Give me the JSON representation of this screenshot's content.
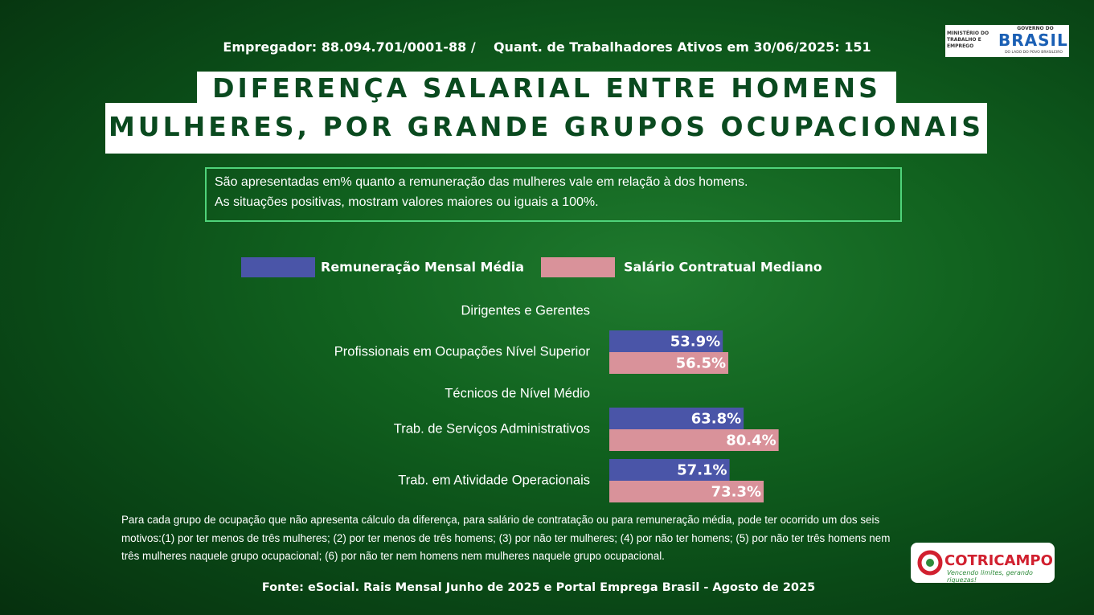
{
  "header": {
    "employer": "Empregador: 88.094.701/0001-88 /",
    "workers": "Quant. de Trabalhadores Ativos em 30/06/2025: 151"
  },
  "title": [
    "DIFERENÇA SALARIAL ENTRE HOMENS E",
    "MULHERES, POR GRANDE GRUPOS OCUPACIONAIS"
  ],
  "description": [
    "São apresentadas em% quanto a remuneração das mulheres vale em relação à dos homens.",
    "As situações positivas, mostram valores maiores ou iguais a 100%."
  ],
  "chart_data": {
    "type": "bar",
    "orientation": "horizontal",
    "categories": [
      "Dirigentes e Gerentes",
      "Profissionais em Ocupações Nível Superior",
      "Técnicos de Nível Médio",
      "Trab. de Serviços Administrativos",
      "Trab. em Atividade Operacionais"
    ],
    "series": [
      {
        "name": "Remuneração Mensal Média",
        "color": "#4a55a8",
        "values": [
          null,
          53.9,
          null,
          63.8,
          57.1
        ],
        "value_labels": [
          null,
          "53.9%",
          null,
          "63.8%",
          "57.1%"
        ]
      },
      {
        "name": "Salário Contratual Mediano",
        "color": "#d9929a",
        "values": [
          null,
          56.5,
          null,
          80.4,
          73.3
        ],
        "value_labels": [
          null,
          "56.5%",
          null,
          "80.4%",
          "73.3%"
        ]
      }
    ],
    "xlim": [
      0,
      100
    ],
    "legend": "top"
  },
  "footnote": "Para cada grupo de ocupação que não apresenta cálculo da diferença, para salário de contratação ou para remuneração média, pode ter ocorrido um dos seis motivos:(1) por ter menos de três mulheres; (2) por ter menos de três homens; (3) por não ter mulheres; (4) por não ter homens; (5) por não ter três homens nem três mulheres naquele grupo ocupacional; (6) por não ter nem homens nem mulheres naquele grupo ocupacional.",
  "source": "Fonte: eSocial. Rais Mensal Junho de 2025 e Portal Emprega Brasil - Agosto de 2025",
  "logos": {
    "ministry": "MINISTÉRIO DO TRABALHO E EMPREGO",
    "gov_top": "GOVERNO DO",
    "gov_main": "BRASIL",
    "gov_tag": "DO LADO DO POVO BRASILEIRO",
    "coop_name": "COTRICAMPO",
    "coop_tag": "Vencendo limites, gerando riquezas!"
  }
}
